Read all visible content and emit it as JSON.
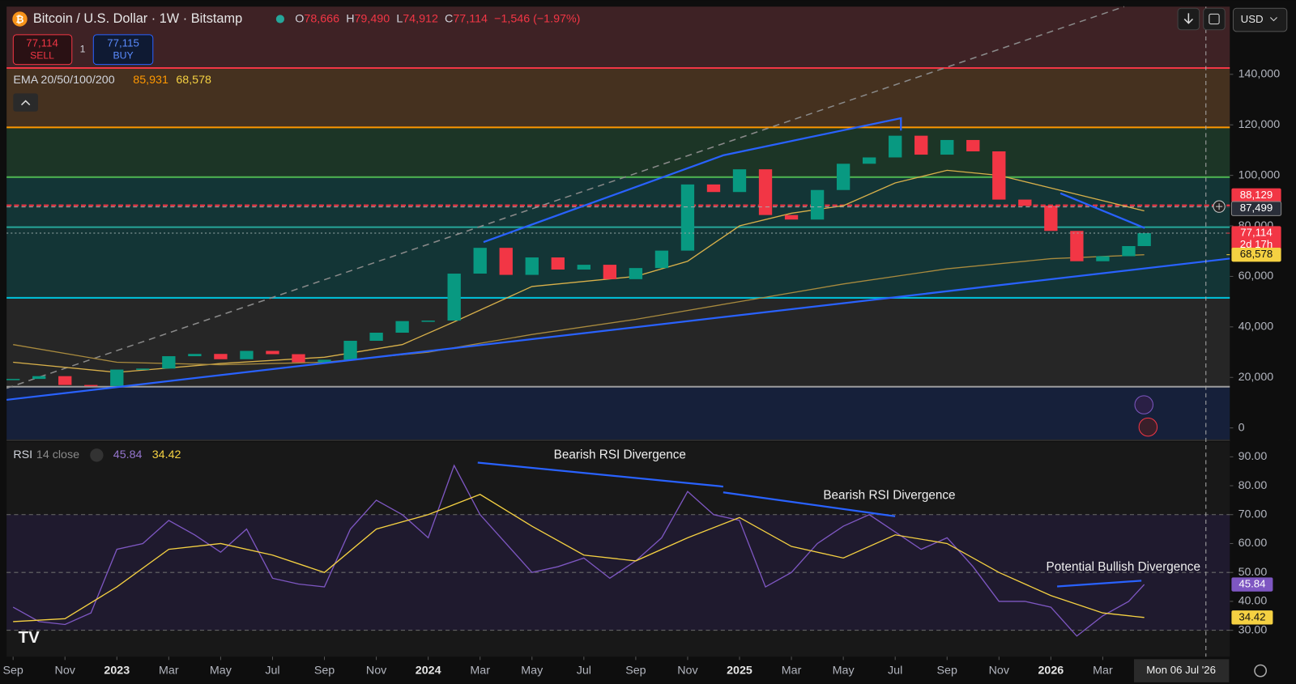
{
  "header": {
    "symbol": "Bitcoin / U.S. Dollar · 1W · Bitstamp",
    "ohlc": [
      {
        "key": "O",
        "value": "78,666"
      },
      {
        "key": "H",
        "value": "79,490"
      },
      {
        "key": "L",
        "value": "74,912"
      },
      {
        "key": "C",
        "value": "77,114"
      }
    ],
    "change": "−1,546 (−1.97%)",
    "currency": "USD"
  },
  "trade": {
    "sell_price": "77,114",
    "sell": "SELL",
    "quantity": "1",
    "buy_price": "77,115",
    "buy": "BUY"
  },
  "ema_legend": {
    "name": "EMA 20/50/100/200",
    "values": [
      "85,931",
      "68,578"
    ]
  },
  "rsi_legend": {
    "name": "RSI",
    "params": "14 close",
    "values": [
      "45.84",
      "34.42"
    ]
  },
  "crosshair_date": "Mon 06 Jul '26",
  "chart_data": [
    {
      "type": "candlestick",
      "x": [
        0,
        1,
        2,
        3,
        4,
        5,
        6,
        7,
        8,
        9,
        10,
        11,
        12,
        13,
        14,
        15,
        16,
        17,
        18,
        19,
        20,
        21,
        22,
        23,
        24,
        25,
        26,
        27,
        28,
        29,
        30,
        31,
        32,
        33,
        34,
        35,
        36,
        37,
        38,
        39,
        40,
        41,
        42,
        43,
        43.6
      ],
      "values": [
        19400,
        20500,
        17000,
        16600,
        23100,
        23500,
        28400,
        29300,
        27200,
        30500,
        29200,
        26000,
        27000,
        34500,
        37700,
        42300,
        42500,
        61100,
        71300,
        60600,
        67500,
        62700,
        64600,
        58900,
        63300,
        70200,
        96400,
        93400,
        102400,
        84300,
        82500,
        94200,
        104600,
        107100,
        115700,
        108200,
        114000,
        109500,
        90400,
        88000,
        78000,
        66000,
        68000,
        72000,
        77114
      ],
      "up_color": "#089981",
      "down_color": "#f23645",
      "lines": [
        {
          "color": "#d8b04a",
          "x": [
            0,
            4,
            8,
            12,
            15,
            17,
            20,
            24,
            26,
            28,
            30,
            32,
            34,
            36,
            38,
            40,
            42,
            43.6
          ],
          "values": [
            26000,
            22000,
            25500,
            28000,
            33000,
            42000,
            56000,
            60000,
            66000,
            80000,
            85000,
            88000,
            97000,
            102000,
            100000,
            95000,
            90000,
            85931
          ]
        },
        {
          "color": "#a88a3e",
          "x": [
            0,
            4,
            8,
            12,
            16,
            20,
            24,
            28,
            32,
            36,
            40,
            43.6
          ],
          "values": [
            33000,
            26000,
            25000,
            26000,
            30000,
            37000,
            43000,
            50000,
            57000,
            63000,
            67000,
            68578
          ]
        }
      ],
      "levels": [
        {
          "value": 142500,
          "color": "#f23645",
          "fill": "#3e2225"
        },
        {
          "value": 119000,
          "color": "#ff9800",
          "fill": "#45311f"
        },
        {
          "value": 99300,
          "color": "#4caf50",
          "fill": "#1c3526"
        },
        {
          "value": 88129,
          "color": "#f23645",
          "fill": "#133536",
          "dashed": true
        },
        {
          "value": 79500,
          "color": "#26a69a",
          "fill": "#133536"
        },
        {
          "value": 51500,
          "color": "#00bcd4",
          "fill": "#133536"
        },
        {
          "value": 16300,
          "color": "#9e9e9e",
          "fill": "#262626"
        }
      ],
      "base_fill": "#16203a",
      "xlim": [
        -0.25,
        46.9
      ],
      "ylim": [
        -4900,
        166800
      ],
      "yticks": [
        0,
        {
          "value": 20000,
          "label": "20,000"
        },
        {
          "value": 40000,
          "label": "40,000"
        },
        {
          "value": 60000,
          "label": "60,000"
        },
        {
          "value": 80000,
          "label": "80,000"
        },
        {
          "value": 100000,
          "label": "100,000"
        },
        {
          "value": 120000,
          "label": "120,000"
        },
        {
          "value": 140000,
          "label": "140,000"
        }
      ],
      "price_labels": [
        {
          "value": 88129,
          "label": "88,129",
          "color": "#f23645"
        },
        {
          "value": 87499,
          "label": "87,499",
          "color": "#2a2e39"
        },
        {
          "value": 77114,
          "label": "77,114",
          "sub": "2d 17h",
          "color": "#f23645"
        },
        {
          "value": 68578,
          "label": "68,578",
          "color": "#f5d142"
        }
      ]
    },
    {
      "type": "line",
      "series": [
        {
          "color": "#7e57c2",
          "x": [
            0,
            1,
            2,
            3,
            4,
            5,
            6,
            7,
            8,
            9,
            10,
            11,
            12,
            13,
            14,
            15,
            16,
            17,
            18,
            19,
            20,
            21,
            22,
            23,
            24,
            25,
            26,
            27,
            28,
            29,
            30,
            31,
            32,
            33,
            34,
            35,
            36,
            37,
            38,
            39,
            40,
            41,
            42,
            43,
            43.6
          ],
          "values": [
            38,
            33,
            32,
            36,
            58,
            60,
            68,
            63,
            57,
            65,
            48,
            46,
            45,
            65,
            75,
            70,
            62,
            87,
            70,
            60,
            50,
            52,
            55,
            48,
            54,
            62,
            78,
            70,
            68,
            45,
            50,
            60,
            66,
            70,
            64,
            58,
            62,
            52,
            40,
            40,
            38,
            28,
            35,
            40,
            45.84
          ]
        },
        {
          "color": "#f5d142",
          "x": [
            0,
            2,
            4,
            6,
            8,
            10,
            12,
            14,
            16,
            18,
            20,
            22,
            24,
            26,
            28,
            30,
            32,
            34,
            36,
            38,
            40,
            42,
            43.6
          ],
          "values": [
            33,
            34,
            45,
            58,
            60,
            56,
            50,
            65,
            70,
            77,
            66,
            56,
            54,
            62,
            69,
            59,
            55,
            63,
            60,
            50,
            42,
            36,
            34.42
          ]
        }
      ],
      "annotations": [
        "Bearish RSI Divergence",
        "Bearish RSI Divergence",
        "Potential Bullish Divergence"
      ],
      "band": [
        30,
        70
      ],
      "hlines": [
        70,
        50,
        30
      ],
      "xlim": [
        -0.25,
        46.9
      ],
      "ylim": [
        20.86,
        95.14
      ],
      "yticks": [
        {
          "value": 90,
          "label": "90.00"
        },
        {
          "value": 80,
          "label": "80.00"
        },
        {
          "value": 70,
          "label": "70.00"
        },
        {
          "value": 60,
          "label": "60.00"
        },
        {
          "value": 50,
          "label": "50.00"
        },
        {
          "value": 40,
          "label": "40.00"
        },
        {
          "value": 30,
          "label": "30.00"
        }
      ],
      "xticks": [
        {
          "value": 0,
          "label": "Sep"
        },
        {
          "value": 2,
          "label": "Nov"
        },
        {
          "value": 4,
          "label": "2023"
        },
        {
          "value": 6,
          "label": "Mar"
        },
        {
          "value": 8,
          "label": "May"
        },
        {
          "value": 10,
          "label": "Jul"
        },
        {
          "value": 12,
          "label": "Sep"
        },
        {
          "value": 14,
          "label": "Nov"
        },
        {
          "value": 16,
          "label": "2024"
        },
        {
          "value": 18,
          "label": "Mar"
        },
        {
          "value": 20,
          "label": "May"
        },
        {
          "value": 22,
          "label": "Jul"
        },
        {
          "value": 24,
          "label": "Sep"
        },
        {
          "value": 26,
          "label": "Nov"
        },
        {
          "value": 28,
          "label": "2025"
        },
        {
          "value": 30,
          "label": "Mar"
        },
        {
          "value": 32,
          "label": "May"
        },
        {
          "value": 34,
          "label": "Jul"
        },
        {
          "value": 36,
          "label": "Sep"
        },
        {
          "value": 38,
          "label": "Nov"
        },
        {
          "value": 40,
          "label": "2026"
        },
        {
          "value": 42,
          "label": "Mar"
        }
      ]
    }
  ]
}
